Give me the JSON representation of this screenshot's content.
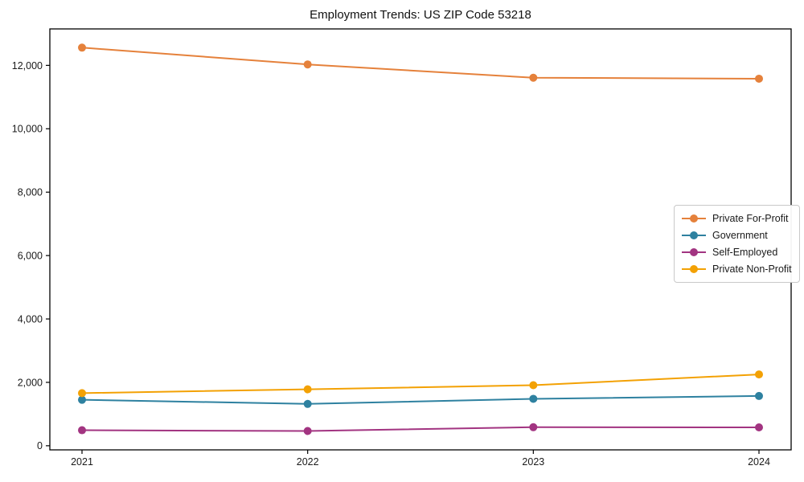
{
  "page": {
    "title": "Employment Trends: US ZIP Code 53218"
  },
  "chart_data": {
    "type": "line",
    "title": "Employment Trends: US ZIP Code 53218",
    "categories": [
      "2021",
      "2022",
      "2023",
      "2024"
    ],
    "series": [
      {
        "name": "Private For-Profit",
        "color": "#E5813B",
        "values": [
          12560,
          12030,
          11610,
          11580
        ]
      },
      {
        "name": "Government",
        "color": "#2E81A0",
        "values": [
          1450,
          1320,
          1480,
          1570
        ]
      },
      {
        "name": "Self-Employed",
        "color": "#A23481",
        "values": [
          490,
          465,
          585,
          580
        ]
      },
      {
        "name": "Private Non-Profit",
        "color": "#F3A104",
        "values": [
          1660,
          1780,
          1910,
          2250
        ]
      }
    ],
    "xlabel": "",
    "ylabel": "",
    "ylim": [
      -130,
      13150
    ],
    "yticks": [
      0,
      2000,
      4000,
      6000,
      8000,
      10000,
      12000
    ],
    "ytick_labels": [
      "0",
      "2,000",
      "4,000",
      "6,000",
      "8,000",
      "10,000",
      "12,000"
    ],
    "grid": false,
    "legend_position": "center right",
    "marker": "circle",
    "axis_color": "#000000"
  }
}
